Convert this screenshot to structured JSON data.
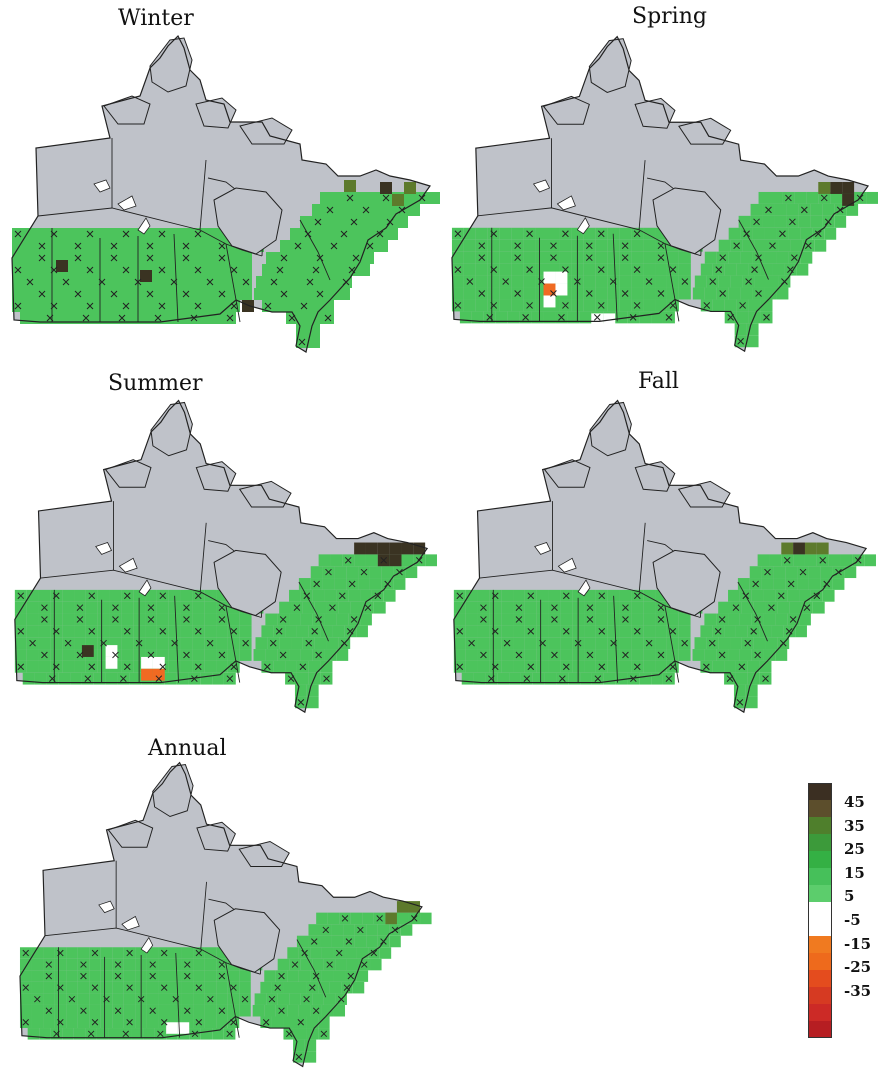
{
  "panels": [
    {
      "id": "winter",
      "title": "Winter"
    },
    {
      "id": "spring",
      "title": "Spring"
    },
    {
      "id": "summer",
      "title": "Summer"
    },
    {
      "id": "fall",
      "title": "Fall"
    },
    {
      "id": "annual",
      "title": "Annual"
    }
  ],
  "colors": {
    "land": "#bfc2c9",
    "outline": "#222222",
    "class_dark": "#3a3322",
    "class_olive": "#5d7a2c",
    "class_green": "#34a84a",
    "class_light": "#4cc45c",
    "class_white": "#ffffff",
    "class_orange": "#f06a22",
    "class_red": "#c42a24"
  },
  "legend": {
    "labels": [
      "45",
      "35",
      "25",
      "15",
      "5",
      "-5",
      "-15",
      "-25",
      "-35"
    ],
    "swatches": [
      "#3b2f22",
      "#5c4e2c",
      "#4f7f2c",
      "#3c9a3a",
      "#34b044",
      "#46c05a",
      "#5ccd6c",
      "#ffffff",
      "#ffffff",
      "#f07a20",
      "#ee6a1c",
      "#e44c1e",
      "#d63a22",
      "#cc2a26",
      "#b61e22"
    ]
  }
}
